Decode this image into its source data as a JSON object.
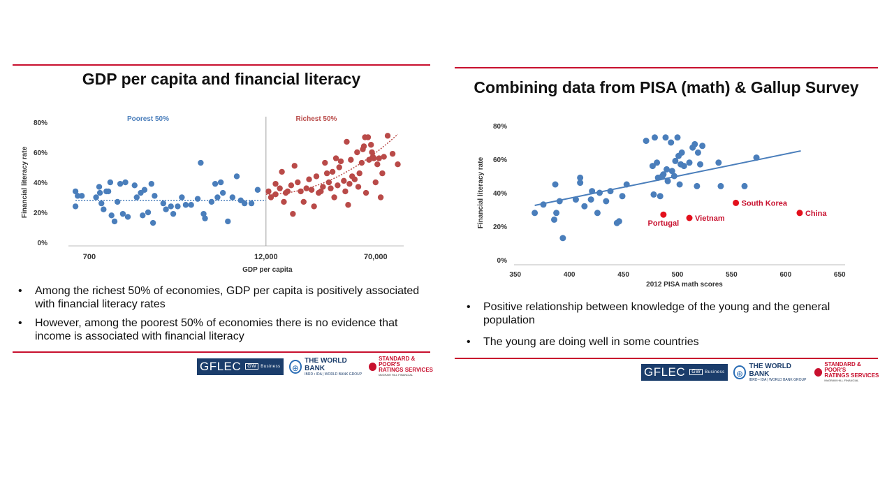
{
  "left_slide": {
    "title": "GDP per capita and financial literacy",
    "bullets": [
      "Among the richest 50% of economies, GDP per capita is positively associated with financial literacy rates",
      "However, among the poorest 50% of economies there is no evidence that income is associated with financial literacy"
    ],
    "logos": {
      "gflec": "GFLEC",
      "gw": "GW",
      "business": "Business",
      "world_bank": "THE WORLD BANK",
      "world_bank_sub": "IBRD • IDA | WORLD BANK GROUP",
      "sp_line1": "STANDARD & POOR'S",
      "sp_line2": "RATINGS SERVICES",
      "sp_sub": "McGRAW HILL FINANCIAL"
    }
  },
  "right_slide": {
    "title": "Combining data from PISA (math) & Gallup Survey",
    "bullets": [
      "Positive relationship between knowledge of the young and the general population",
      "The young are doing well in some countries"
    ],
    "logos": {
      "gflec": "GFLEC",
      "gw": "GW",
      "business": "Business",
      "world_bank": "THE WORLD BANK",
      "world_bank_sub": "IBRD • IDA | WORLD BANK GROUP",
      "sp_line1": "STANDARD & POOR'S",
      "sp_line2": "RATINGS SERVICES",
      "sp_sub": "McGRAW HILL FINANCIAL"
    }
  },
  "colors": {
    "accent_red": "#c8102e",
    "blue": "#4a7ebb",
    "red_points": "#b94a48",
    "highlight_red": "#e3101c"
  },
  "chart_data": [
    {
      "type": "scatter",
      "title": "",
      "xlabel": "GDP per capita",
      "ylabel": "Financial literacy rate",
      "x_scale": "log",
      "xlim": [
        500,
        110000
      ],
      "ylim": [
        0,
        80
      ],
      "x_ticks": [
        700,
        12000,
        70000
      ],
      "x_tick_labels": [
        "700",
        "12,000",
        "70,000"
      ],
      "y_ticks": [
        0,
        20,
        40,
        60,
        80
      ],
      "y_tick_labels": [
        "0%",
        "20%",
        "40%",
        "60%",
        "80%"
      ],
      "divider_x": 12000,
      "group_labels": [
        "Poorest 50%",
        "Richest 50%"
      ],
      "series": [
        {
          "name": "Poorest 50%",
          "color": "#4a7ebb",
          "trend": "flat",
          "points": [
            [
              560,
              34
            ],
            [
              560,
              24
            ],
            [
              580,
              31
            ],
            [
              620,
              31
            ],
            [
              780,
              30
            ],
            [
              820,
              37
            ],
            [
              830,
              33
            ],
            [
              850,
              26
            ],
            [
              880,
              22
            ],
            [
              920,
              34
            ],
            [
              950,
              34
            ],
            [
              980,
              40
            ],
            [
              1000,
              18
            ],
            [
              1050,
              14
            ],
            [
              1100,
              27
            ],
            [
              1150,
              39
            ],
            [
              1200,
              19
            ],
            [
              1250,
              40
            ],
            [
              1300,
              17
            ],
            [
              1450,
              38
            ],
            [
              1500,
              30
            ],
            [
              1600,
              33
            ],
            [
              1650,
              18
            ],
            [
              1700,
              35
            ],
            [
              1800,
              20
            ],
            [
              1900,
              39
            ],
            [
              1950,
              13
            ],
            [
              2000,
              31
            ],
            [
              2300,
              26
            ],
            [
              2400,
              22
            ],
            [
              2600,
              24
            ],
            [
              2700,
              19
            ],
            [
              2900,
              24
            ],
            [
              3100,
              30
            ],
            [
              3300,
              25
            ],
            [
              3600,
              25
            ],
            [
              4000,
              29
            ],
            [
              4200,
              53
            ],
            [
              4400,
              19
            ],
            [
              4500,
              16
            ],
            [
              5000,
              27
            ],
            [
              5300,
              39
            ],
            [
              5500,
              30
            ],
            [
              5800,
              40
            ],
            [
              6000,
              33
            ],
            [
              6500,
              14
            ],
            [
              7000,
              30
            ],
            [
              7500,
              44
            ],
            [
              8000,
              28
            ],
            [
              8500,
              26
            ],
            [
              9500,
              26
            ],
            [
              10500,
              35
            ]
          ]
        },
        {
          "name": "Richest 50%",
          "color": "#b94a48",
          "trend": "rising",
          "points": [
            [
              12500,
              34
            ],
            [
              13000,
              30
            ],
            [
              14000,
              32
            ],
            [
              14000,
              39
            ],
            [
              15000,
              36
            ],
            [
              15500,
              47
            ],
            [
              16000,
              27
            ],
            [
              16500,
              33
            ],
            [
              17000,
              34
            ],
            [
              18000,
              38
            ],
            [
              18500,
              19
            ],
            [
              19000,
              51
            ],
            [
              20000,
              40
            ],
            [
              21000,
              34
            ],
            [
              22000,
              27
            ],
            [
              23000,
              36
            ],
            [
              24000,
              42
            ],
            [
              25000,
              35
            ],
            [
              26000,
              24
            ],
            [
              27000,
              44
            ],
            [
              28000,
              33
            ],
            [
              29000,
              34
            ],
            [
              30000,
              37
            ],
            [
              31000,
              53
            ],
            [
              32000,
              46
            ],
            [
              33000,
              40
            ],
            [
              34000,
              36
            ],
            [
              35000,
              47
            ],
            [
              36000,
              30
            ],
            [
              37000,
              56
            ],
            [
              38000,
              38
            ],
            [
              39000,
              50
            ],
            [
              40000,
              54
            ],
            [
              42000,
              41
            ],
            [
              43000,
              34
            ],
            [
              44000,
              67
            ],
            [
              45000,
              25
            ],
            [
              46000,
              39
            ],
            [
              47000,
              55
            ],
            [
              48000,
              44
            ],
            [
              50000,
              42
            ],
            [
              52000,
              60
            ],
            [
              53000,
              37
            ],
            [
              54000,
              46
            ],
            [
              56000,
              53
            ],
            [
              57000,
              62
            ],
            [
              58000,
              64
            ],
            [
              59000,
              70
            ],
            [
              60000,
              33
            ],
            [
              62000,
              70
            ],
            [
              63000,
              55
            ],
            [
              65000,
              65
            ],
            [
              66000,
              60
            ],
            [
              67000,
              57
            ],
            [
              68000,
              56
            ],
            [
              70000,
              40
            ],
            [
              72000,
              52
            ],
            [
              74000,
              56
            ],
            [
              76000,
              30
            ],
            [
              78000,
              46
            ],
            [
              80000,
              57
            ],
            [
              85000,
              71
            ],
            [
              92000,
              59
            ],
            [
              100000,
              52
            ]
          ]
        }
      ]
    },
    {
      "type": "scatter",
      "title": "",
      "xlabel": "2012 PISA math scores",
      "ylabel": "Financial literacy rate",
      "xlim": [
        345,
        655
      ],
      "ylim": [
        0,
        80
      ],
      "x_ticks": [
        350,
        400,
        450,
        500,
        550,
        600,
        650
      ],
      "x_tick_labels": [
        "350",
        "400",
        "450",
        "500",
        "550",
        "600",
        "650"
      ],
      "y_ticks": [
        0,
        20,
        40,
        60,
        80
      ],
      "y_tick_labels": [
        "0%",
        "20%",
        "40%",
        "60%",
        "80%"
      ],
      "trendline": [
        [
          368,
          32.5
        ],
        [
          614,
          65
        ]
      ],
      "series": [
        {
          "name": "Countries",
          "color": "#4a7ebb",
          "points": [
            [
              368,
              28
            ],
            [
              376,
              33
            ],
            [
              386,
              24
            ],
            [
              387,
              45
            ],
            [
              388,
              28
            ],
            [
              391,
              35
            ],
            [
              394,
              13
            ],
            [
              406,
              36
            ],
            [
              410,
              46
            ],
            [
              410,
              49
            ],
            [
              414,
              32
            ],
            [
              420,
              36
            ],
            [
              421,
              41
            ],
            [
              426,
              28
            ],
            [
              428,
              40
            ],
            [
              434,
              35
            ],
            [
              438,
              41
            ],
            [
              444,
              22
            ],
            [
              446,
              23
            ],
            [
              449,
              38
            ],
            [
              453,
              45
            ],
            [
              471,
              71
            ],
            [
              477,
              56
            ],
            [
              478,
              39
            ],
            [
              479,
              73
            ],
            [
              481,
              58
            ],
            [
              482,
              49
            ],
            [
              484,
              38
            ],
            [
              486,
              50
            ],
            [
              487,
              51
            ],
            [
              489,
              73
            ],
            [
              490,
              54
            ],
            [
              491,
              47
            ],
            [
              494,
              70
            ],
            [
              495,
              53
            ],
            [
              497,
              50
            ],
            [
              498,
              59
            ],
            [
              500,
              73
            ],
            [
              501,
              62
            ],
            [
              502,
              45
            ],
            [
              503,
              57
            ],
            [
              504,
              64
            ],
            [
              506,
              56
            ],
            [
              511,
              58
            ],
            [
              514,
              67
            ],
            [
              516,
              69
            ],
            [
              518,
              44
            ],
            [
              519,
              64
            ],
            [
              521,
              57
            ],
            [
              523,
              68
            ],
            [
              538,
              58
            ],
            [
              540,
              44
            ],
            [
              562,
              44
            ],
            [
              573,
              61
            ]
          ]
        },
        {
          "name": "Highlighted",
          "color": "#e3101c",
          "points": [
            [
              487,
              27,
              "Portugal"
            ],
            [
              511,
              25,
              "Vietnam"
            ],
            [
              554,
              34,
              "South Korea"
            ],
            [
              613,
              28,
              "China"
            ]
          ]
        }
      ]
    }
  ]
}
